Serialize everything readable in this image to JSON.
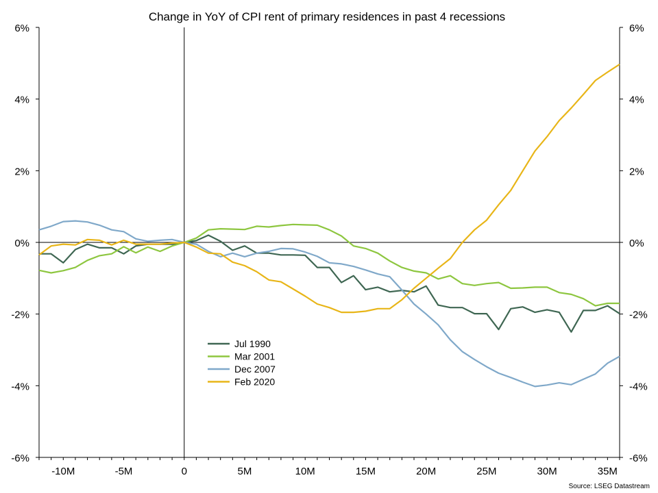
{
  "chart_data": {
    "type": "line",
    "title": "Change in YoY of CPI rent of primary residences in past 4 recessions",
    "source": "Source: LSEG Datastream",
    "x_range": [
      -12,
      36
    ],
    "y_range": [
      -6,
      6
    ],
    "x_ticks": [
      -10,
      -5,
      0,
      5,
      10,
      15,
      20,
      25,
      30,
      35
    ],
    "x_tick_labels": [
      "-10M",
      "-5M",
      "0",
      "5M",
      "10M",
      "15M",
      "20M",
      "25M",
      "30M",
      "35M"
    ],
    "y_ticks": [
      -6,
      -4,
      -2,
      0,
      2,
      4,
      6
    ],
    "y_tick_labels": [
      "-6%",
      "-4%",
      "-2%",
      "0%",
      "2%",
      "4%",
      "6%"
    ],
    "grid": false,
    "legend_position": "center-left",
    "x_start": -12,
    "series": [
      {
        "name": "Jul 1990",
        "color": "#3e6652",
        "values": [
          -0.32,
          -0.32,
          -0.57,
          -0.2,
          -0.05,
          -0.15,
          -0.15,
          -0.32,
          -0.1,
          -0.05,
          -0.05,
          -0.05,
          0.0,
          0.05,
          0.2,
          0.03,
          -0.22,
          -0.1,
          -0.3,
          -0.3,
          -0.35,
          -0.35,
          -0.36,
          -0.7,
          -0.7,
          -1.12,
          -0.93,
          -1.32,
          -1.25,
          -1.38,
          -1.34,
          -1.38,
          -1.22,
          -1.75,
          -1.82,
          -1.82,
          -1.99,
          -1.99,
          -2.43,
          -1.85,
          -1.8,
          -1.95,
          -1.88,
          -1.95,
          -2.5,
          -1.9,
          -1.9,
          -1.77,
          -1.99
        ]
      },
      {
        "name": "Mar 2001",
        "color": "#8dc63f",
        "values": [
          -0.78,
          -0.85,
          -0.79,
          -0.7,
          -0.5,
          -0.37,
          -0.32,
          -0.12,
          -0.29,
          -0.13,
          -0.25,
          -0.1,
          0.0,
          0.12,
          0.35,
          0.38,
          0.37,
          0.36,
          0.45,
          0.43,
          0.47,
          0.5,
          0.49,
          0.48,
          0.35,
          0.18,
          -0.1,
          -0.17,
          -0.3,
          -0.52,
          -0.7,
          -0.8,
          -0.85,
          -1.02,
          -0.93,
          -1.15,
          -1.2,
          -1.15,
          -1.12,
          -1.28,
          -1.27,
          -1.25,
          -1.25,
          -1.4,
          -1.45,
          -1.57,
          -1.77,
          -1.7,
          -1.7
        ]
      },
      {
        "name": "Dec 2007",
        "color": "#7fa8c9",
        "values": [
          0.35,
          0.45,
          0.58,
          0.6,
          0.57,
          0.48,
          0.35,
          0.3,
          0.1,
          0.03,
          0.06,
          0.08,
          0.0,
          -0.05,
          -0.25,
          -0.4,
          -0.3,
          -0.4,
          -0.3,
          -0.25,
          -0.17,
          -0.18,
          -0.27,
          -0.39,
          -0.57,
          -0.6,
          -0.67,
          -0.77,
          -0.88,
          -0.96,
          -1.33,
          -1.72,
          -2.0,
          -2.3,
          -2.72,
          -3.05,
          -3.27,
          -3.47,
          -3.65,
          -3.77,
          -3.9,
          -4.02,
          -3.98,
          -3.92,
          -3.97,
          -3.82,
          -3.67,
          -3.37,
          -3.18
        ]
      },
      {
        "name": "Feb 2020",
        "color": "#e8b517",
        "values": [
          -0.35,
          -0.1,
          -0.05,
          -0.07,
          0.08,
          0.06,
          -0.07,
          0.06,
          -0.05,
          -0.05,
          -0.05,
          -0.02,
          0.0,
          -0.13,
          -0.3,
          -0.32,
          -0.55,
          -0.65,
          -0.82,
          -1.05,
          -1.1,
          -1.3,
          -1.5,
          -1.72,
          -1.82,
          -1.95,
          -1.95,
          -1.92,
          -1.85,
          -1.85,
          -1.6,
          -1.28,
          -1.0,
          -0.72,
          -0.45,
          0.0,
          0.35,
          0.62,
          1.05,
          1.45,
          2.0,
          2.55,
          2.95,
          3.4,
          3.75,
          4.13,
          4.52,
          4.75,
          4.97
        ]
      }
    ]
  }
}
